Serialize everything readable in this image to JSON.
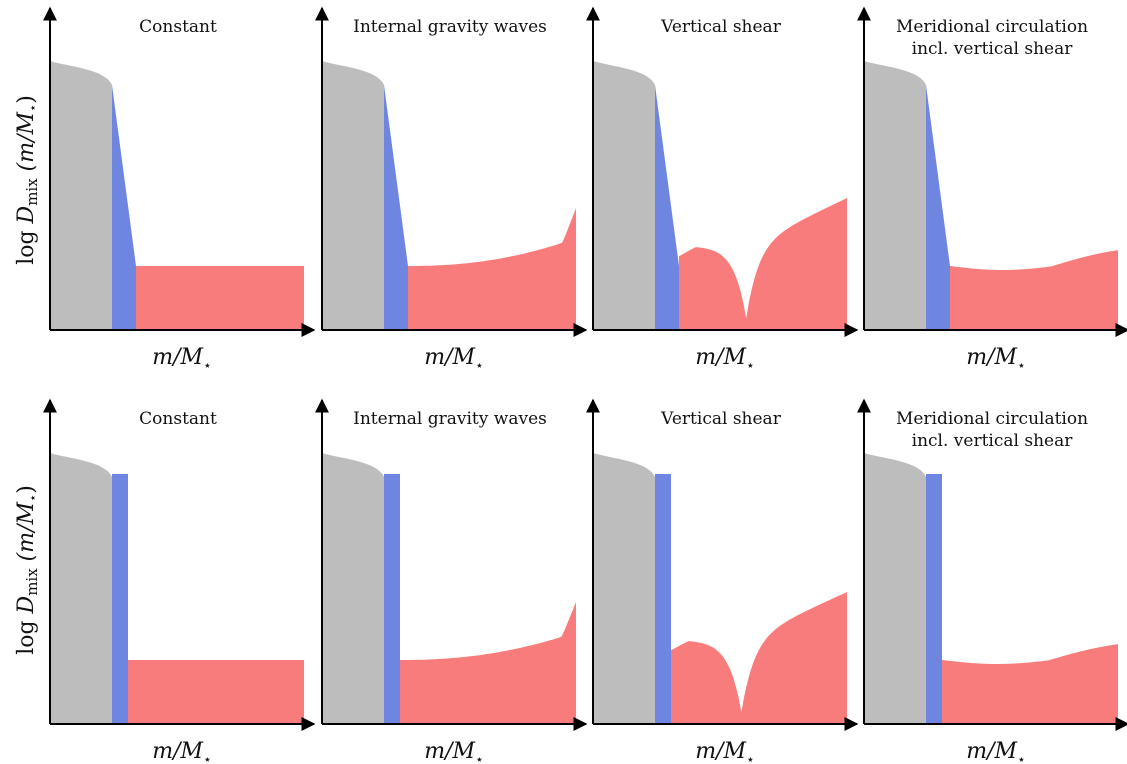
{
  "figure": {
    "ylabel": {
      "prefix": "log ",
      "symbol": "D",
      "subscript": "mix",
      "arg": " (m/M",
      "star": "⋆",
      "close": ")"
    },
    "xlabel": {
      "text": "m/M",
      "star": "⋆"
    },
    "colors": {
      "core": "#bdbdbd",
      "overshoot": "#6f86e0",
      "envelope": "#f97c7c",
      "axis": "#000000"
    },
    "rows": [
      {
        "overshoot_profile": "exponential",
        "panels": [
          {
            "title_lines": [
              "Constant"
            ],
            "envelope_profile": "constant"
          },
          {
            "title_lines": [
              "Internal gravity waves"
            ],
            "envelope_profile": "increasing"
          },
          {
            "title_lines": [
              "Vertical shear"
            ],
            "envelope_profile": "dip"
          },
          {
            "title_lines": [
              "Meridional circulation",
              "incl. vertical shear"
            ],
            "envelope_profile": "wavy"
          }
        ]
      },
      {
        "overshoot_profile": "step",
        "panels": [
          {
            "title_lines": [
              "Constant"
            ],
            "envelope_profile": "constant"
          },
          {
            "title_lines": [
              "Internal gravity waves"
            ],
            "envelope_profile": "increasing"
          },
          {
            "title_lines": [
              "Vertical shear"
            ],
            "envelope_profile": "dip"
          },
          {
            "title_lines": [
              "Meridional circulation",
              "incl. vertical shear"
            ],
            "envelope_profile": "wavy"
          }
        ]
      }
    ]
  }
}
